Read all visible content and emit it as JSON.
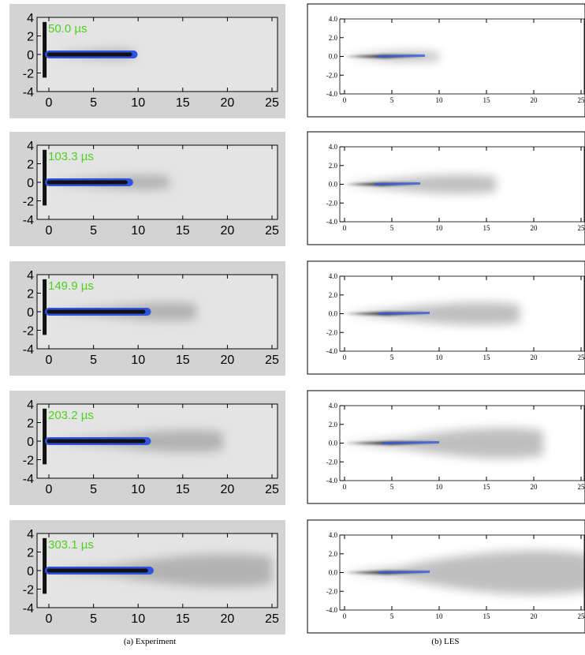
{
  "columns": [
    {
      "caption": "(a) Experiment",
      "xlim": [
        -1.2,
        25.2
      ],
      "ylim": [
        -4,
        4
      ],
      "xticks": [
        0,
        5,
        10,
        15,
        20,
        25
      ],
      "yticks": [
        4,
        2,
        0,
        -2,
        -4
      ],
      "panels": [
        {
          "label": "50.0 µs"
        },
        {
          "label": "103.3 µs"
        },
        {
          "label": "149.9 µs"
        },
        {
          "label": "203.2 µs"
        },
        {
          "label": "303.1 µs"
        }
      ]
    },
    {
      "caption": "(b) LES",
      "xlim": [
        -0.5,
        25
      ],
      "ylim": [
        -4,
        4
      ],
      "xticks": [
        0,
        5,
        10,
        15,
        20,
        25
      ],
      "yticks": [
        {
          "value": 4,
          "label": "4.0"
        },
        {
          "value": 2,
          "label": "2.0"
        },
        {
          "value": 0,
          "label": "0.0"
        },
        {
          "value": -2,
          "label": "-2.0"
        },
        {
          "value": -4,
          "label": "-4.0"
        }
      ]
    }
  ]
}
